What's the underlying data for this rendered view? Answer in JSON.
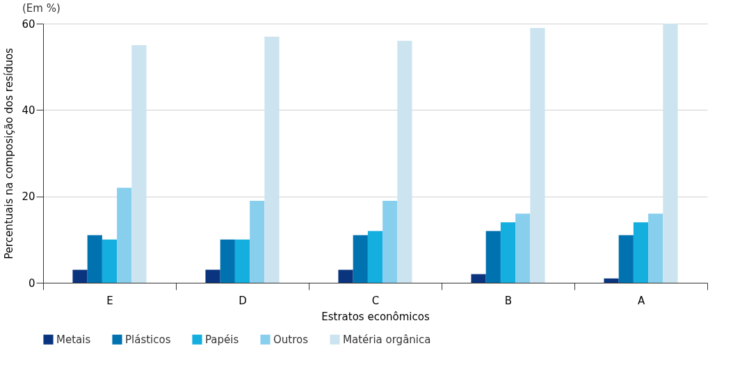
{
  "chart_data": {
    "type": "bar",
    "xlabel": "Estratos econômicos",
    "ylabel": "Percentuais na composição dos resíduos",
    "annotations": [
      "(Em %)"
    ],
    "categories": [
      "E",
      "D",
      "C",
      "B",
      "A"
    ],
    "series": [
      {
        "name": "Metais",
        "color": "#0a347e",
        "values": [
          3,
          3,
          3,
          2,
          1
        ]
      },
      {
        "name": "Plásticos",
        "color": "#0072b0",
        "values": [
          11,
          10,
          11,
          12,
          11
        ]
      },
      {
        "name": "Papéis",
        "color": "#14aedf",
        "values": [
          10,
          10,
          12,
          14,
          14
        ]
      },
      {
        "name": "Outros",
        "color": "#88cfee",
        "values": [
          22,
          19,
          19,
          16,
          16
        ]
      },
      {
        "name": "Matéria orgânica",
        "color": "#cbe4f0",
        "values": [
          55,
          57,
          56,
          59,
          60
        ]
      }
    ],
    "ylim": [
      0,
      60
    ],
    "yticks": [
      0,
      20,
      40,
      60
    ],
    "grid": "y",
    "legend": "bottom"
  }
}
